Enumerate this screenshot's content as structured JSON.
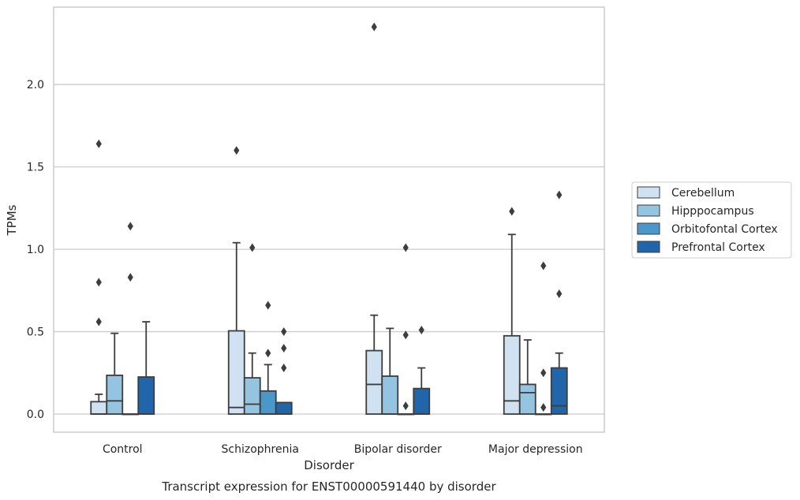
{
  "chart_data": {
    "type": "box",
    "title": "",
    "xlabel": "Disorder",
    "ylabel": "TPMs",
    "caption": "Transcript expression for ENST00000591440 by disorder",
    "categories": [
      "Control",
      "Schizophrenia",
      "Bipolar disorder",
      "Major depression"
    ],
    "ylim": [
      -0.11,
      2.47
    ],
    "yticks": [
      "0.0",
      "0.5",
      "1.0",
      "1.5",
      "2.0"
    ],
    "grid": "horizontal",
    "legend_placement": "center-right",
    "series": [
      {
        "name": "Cerebellum",
        "color": "#d0e1f2",
        "boxes": [
          {
            "q1": 0.0,
            "median": 0.0,
            "q3": 0.075,
            "whisker_low": 0.0,
            "whisker_high": 0.12,
            "outliers": [
              0.56,
              0.8,
              1.64
            ]
          },
          {
            "q1": 0.0,
            "median": 0.04,
            "q3": 0.505,
            "whisker_low": 0.0,
            "whisker_high": 1.04,
            "outliers": [
              1.6
            ]
          },
          {
            "q1": 0.0,
            "median": 0.18,
            "q3": 0.385,
            "whisker_low": 0.0,
            "whisker_high": 0.6,
            "outliers": [
              2.35
            ]
          },
          {
            "q1": 0.0,
            "median": 0.08,
            "q3": 0.475,
            "whisker_low": 0.0,
            "whisker_high": 1.09,
            "outliers": [
              1.23
            ]
          }
        ]
      },
      {
        "name": "Hipppocampus",
        "color": "#94c4df",
        "boxes": [
          {
            "q1": 0.0,
            "median": 0.08,
            "q3": 0.235,
            "whisker_low": 0.0,
            "whisker_high": 0.49,
            "outliers": []
          },
          {
            "q1": 0.0,
            "median": 0.06,
            "q3": 0.22,
            "whisker_low": 0.0,
            "whisker_high": 0.37,
            "outliers": [
              1.01
            ]
          },
          {
            "q1": 0.0,
            "median": 0.0,
            "q3": 0.23,
            "whisker_low": 0.0,
            "whisker_high": 0.52,
            "outliers": []
          },
          {
            "q1": 0.0,
            "median": 0.13,
            "q3": 0.18,
            "whisker_low": 0.0,
            "whisker_high": 0.45,
            "outliers": []
          }
        ]
      },
      {
        "name": "Orbitofontal Cortex",
        "color": "#4a98c9",
        "boxes": [
          {
            "q1": 0.0,
            "median": 0.0,
            "q3": 0.0,
            "whisker_low": 0.0,
            "whisker_high": 0.0,
            "outliers": [
              0.83,
              1.14
            ]
          },
          {
            "q1": 0.0,
            "median": 0.0,
            "q3": 0.14,
            "whisker_low": 0.0,
            "whisker_high": 0.3,
            "outliers": [
              0.37,
              0.66
            ]
          },
          {
            "q1": 0.0,
            "median": 0.0,
            "q3": 0.0,
            "whisker_low": 0.0,
            "whisker_high": 0.0,
            "outliers": [
              0.05,
              0.48,
              1.01
            ]
          },
          {
            "q1": 0.0,
            "median": 0.0,
            "q3": 0.0,
            "whisker_low": 0.0,
            "whisker_high": 0.0,
            "outliers": [
              0.04,
              0.25,
              0.9
            ]
          }
        ]
      },
      {
        "name": "Prefrontal Cortex",
        "color": "#2165ab",
        "boxes": [
          {
            "q1": 0.0,
            "median": 0.0,
            "q3": 0.225,
            "whisker_low": 0.0,
            "whisker_high": 0.56,
            "outliers": []
          },
          {
            "q1": 0.0,
            "median": 0.0,
            "q3": 0.07,
            "whisker_low": 0.0,
            "whisker_high": 0.07,
            "outliers": [
              0.28,
              0.4,
              0.5
            ]
          },
          {
            "q1": 0.0,
            "median": 0.0,
            "q3": 0.155,
            "whisker_low": 0.0,
            "whisker_high": 0.28,
            "outliers": [
              0.51
            ]
          },
          {
            "q1": 0.0,
            "median": 0.05,
            "q3": 0.28,
            "whisker_low": 0.0,
            "whisker_high": 0.37,
            "outliers": [
              0.73,
              1.33
            ]
          }
        ]
      }
    ]
  }
}
